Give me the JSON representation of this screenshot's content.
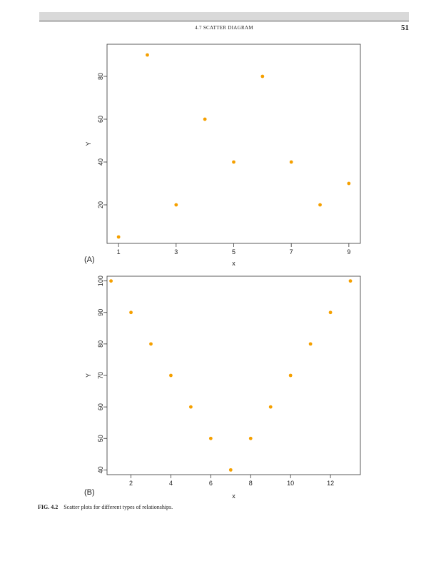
{
  "header": {
    "running_head": "4.7 SCATTER DIAGRAM",
    "page_number": "51"
  },
  "caption": {
    "label": "FIG. 4.2",
    "text": "Scatter plots for different types of relationships."
  },
  "point_color": "#f5a000",
  "chart_data": [
    {
      "type": "scatter",
      "panel_label": "(A)",
      "xlabel": "x",
      "ylabel": "Y",
      "xlim": [
        0.6,
        9.4
      ],
      "ylim": [
        2,
        95
      ],
      "xticks": [
        1,
        3,
        5,
        7,
        9
      ],
      "yticks": [
        20,
        40,
        60,
        80
      ],
      "grid": false,
      "x": [
        1,
        2,
        3,
        4,
        5,
        6,
        7,
        8,
        9
      ],
      "y": [
        5,
        90,
        20,
        60,
        40,
        80,
        40,
        20,
        30
      ]
    },
    {
      "type": "scatter",
      "panel_label": "(B)",
      "xlabel": "x",
      "ylabel": "Y",
      "xlim": [
        0.8,
        13.5
      ],
      "ylim": [
        38.5,
        101.5
      ],
      "xticks": [
        2,
        4,
        6,
        8,
        10,
        12
      ],
      "yticks": [
        40,
        50,
        60,
        70,
        80,
        90,
        100
      ],
      "grid": false,
      "x": [
        1,
        2,
        3,
        4,
        5,
        6,
        7,
        8,
        9,
        10,
        11,
        12,
        13
      ],
      "y": [
        100,
        90,
        80,
        70,
        60,
        50,
        40,
        50,
        60,
        70,
        80,
        90,
        100
      ]
    }
  ]
}
